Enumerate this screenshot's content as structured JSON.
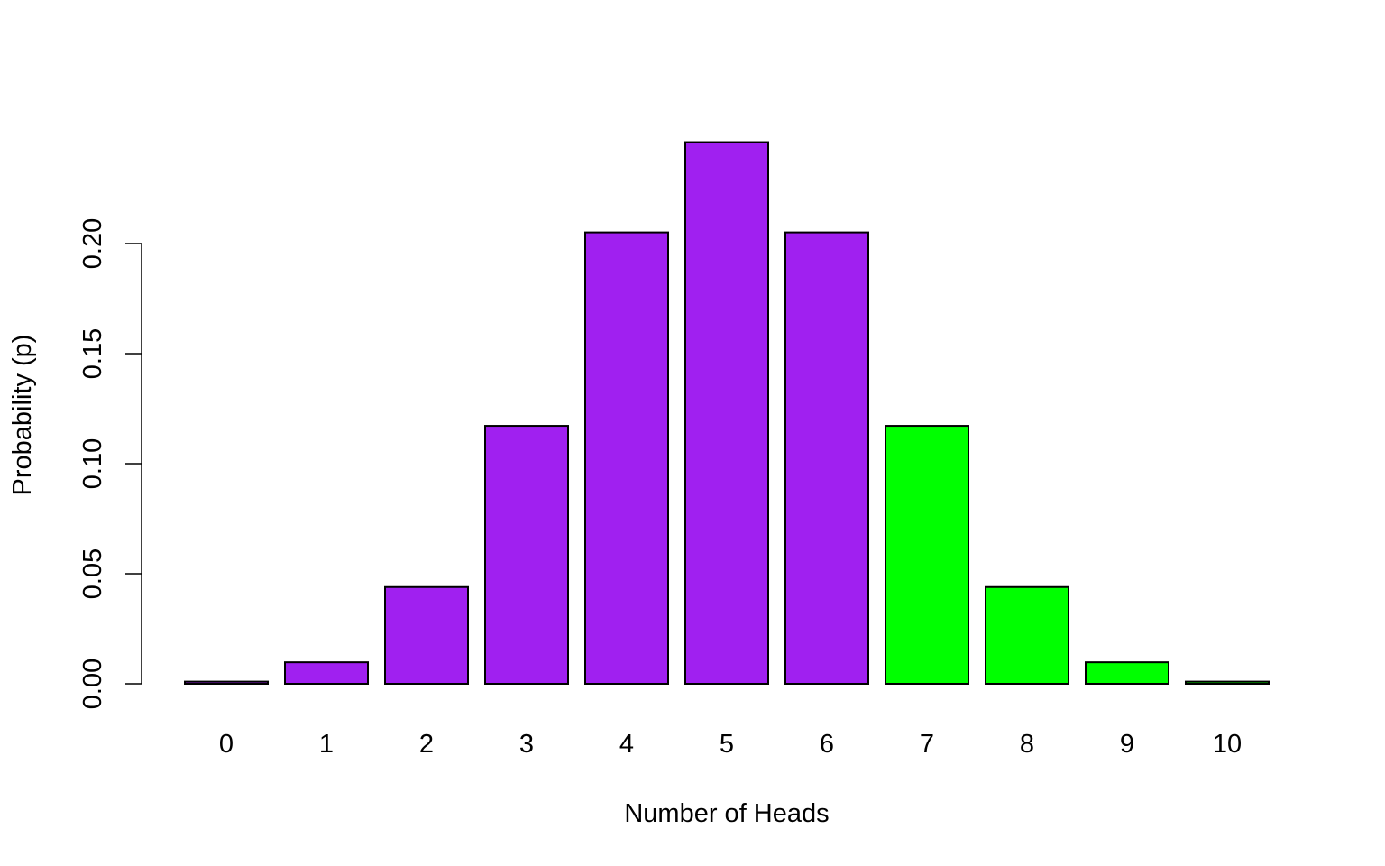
{
  "chart_data": {
    "type": "bar",
    "title": "",
    "xlabel": "Number of Heads",
    "ylabel": "Probability (p)",
    "categories": [
      "0",
      "1",
      "2",
      "3",
      "4",
      "5",
      "6",
      "7",
      "8",
      "9",
      "10"
    ],
    "values": [
      0.00098,
      0.00977,
      0.04395,
      0.11719,
      0.20508,
      0.24609,
      0.20508,
      0.11719,
      0.04395,
      0.00977,
      0.00098
    ],
    "bar_colors": [
      "#A020F0",
      "#A020F0",
      "#A020F0",
      "#A020F0",
      "#A020F0",
      "#A020F0",
      "#A020F0",
      "#00FF00",
      "#00FF00",
      "#00FF00",
      "#00FF00"
    ],
    "ylim": [
      0,
      0.25
    ],
    "yticks": [
      0,
      0.05,
      0.1,
      0.15,
      0.2
    ],
    "ytick_labels": [
      "0.00",
      "0.05",
      "0.10",
      "0.15",
      "0.20"
    ],
    "grid": false,
    "legend": "none"
  },
  "colors": {
    "purple": "#A020F0",
    "green": "#00FF00",
    "outline": "#000000"
  }
}
